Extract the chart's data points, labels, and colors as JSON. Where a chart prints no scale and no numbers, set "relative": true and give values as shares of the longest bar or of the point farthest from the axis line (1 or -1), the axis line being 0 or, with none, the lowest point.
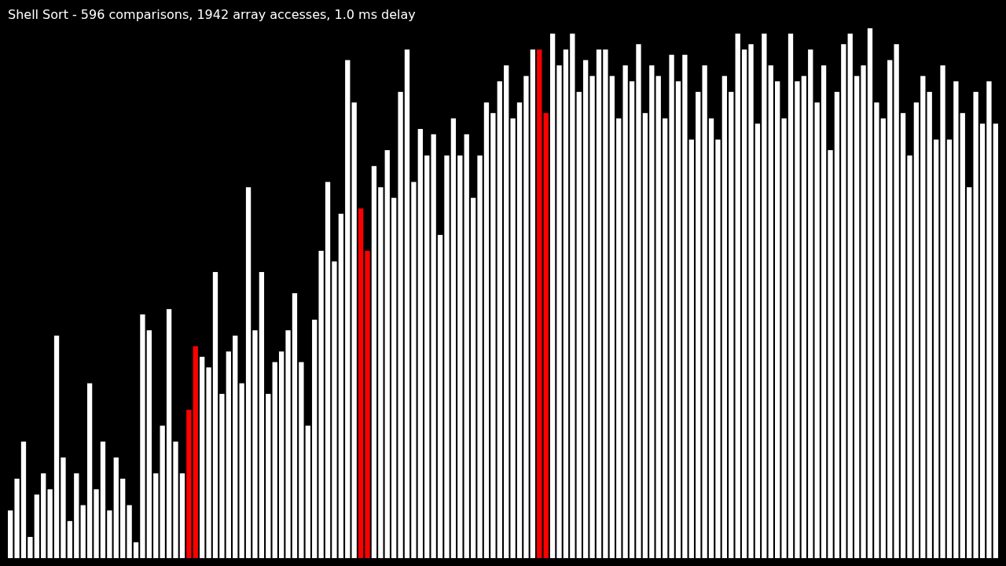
{
  "chart_data": {
    "type": "bar",
    "title": "Shell Sort - 596 comparisons, 1942 array accesses, 1.0 ms delay",
    "relative": true,
    "categories": [
      null,
      null,
      null,
      null,
      null,
      null,
      null,
      null,
      null,
      null,
      null,
      null,
      null,
      null,
      null,
      null,
      null,
      null,
      null,
      null,
      null,
      null,
      null,
      null,
      null,
      null,
      null,
      null,
      null,
      null,
      null,
      null,
      null,
      null,
      null,
      null,
      null,
      null,
      null,
      null,
      null,
      null,
      null,
      null,
      null,
      null,
      null,
      null,
      null,
      null,
      null,
      null,
      null,
      null,
      null,
      null,
      null,
      null,
      null,
      null,
      null,
      null,
      null,
      null,
      null,
      null,
      null,
      null,
      null,
      null,
      null,
      null,
      null,
      null,
      null,
      null,
      null,
      null,
      null,
      null,
      null,
      null,
      null,
      null,
      null,
      null,
      null,
      null,
      null,
      null,
      null,
      null,
      null,
      null,
      null,
      null,
      null,
      null,
      null,
      null,
      null,
      null,
      null,
      null,
      null,
      null,
      null,
      null,
      null,
      null,
      null,
      null,
      null,
      null,
      null,
      null,
      null,
      null,
      null,
      null,
      null,
      null,
      null,
      null,
      null,
      null,
      null,
      null,
      null,
      null,
      null,
      null,
      null,
      null,
      null,
      null,
      null,
      null,
      null,
      null,
      null,
      null,
      null,
      null,
      null,
      null,
      null,
      null,
      null,
      null
    ],
    "values": [
      0.09,
      0.15,
      0.22,
      0.04,
      0.12,
      0.16,
      0.13,
      0.42,
      0.19,
      0.07,
      0.16,
      0.1,
      0.33,
      0.13,
      0.22,
      0.09,
      0.19,
      0.15,
      0.1,
      0.03,
      0.46,
      0.43,
      0.16,
      0.25,
      0.47,
      0.22,
      0.16,
      0.28,
      0.4,
      0.38,
      0.36,
      0.54,
      0.31,
      0.39,
      0.42,
      0.33,
      0.7,
      0.43,
      0.54,
      0.31,
      0.37,
      0.39,
      0.43,
      0.5,
      0.37,
      0.25,
      0.45,
      0.58,
      0.71,
      0.56,
      0.65,
      0.94,
      0.86,
      0.66,
      0.58,
      0.74,
      0.7,
      0.77,
      0.68,
      0.88,
      0.96,
      0.71,
      0.81,
      0.76,
      0.8,
      0.61,
      0.76,
      0.83,
      0.76,
      0.8,
      0.68,
      0.76,
      0.86,
      0.84,
      0.9,
      0.93,
      0.83,
      0.86,
      0.91,
      0.96,
      0.96,
      0.84,
      0.99,
      0.93,
      0.96,
      0.99,
      0.88,
      0.94,
      0.91,
      0.96,
      0.96,
      0.91,
      0.83,
      0.93,
      0.9,
      0.97,
      0.84,
      0.93,
      0.91,
      0.83,
      0.95,
      0.9,
      0.95,
      0.79,
      0.88,
      0.93,
      0.83,
      0.79,
      0.91,
      0.88,
      0.99,
      0.96,
      0.97,
      0.82,
      0.99,
      0.93,
      0.9,
      0.83,
      0.99,
      0.9,
      0.91,
      0.96,
      0.86,
      0.93,
      0.77,
      0.88,
      0.97,
      0.99,
      0.91,
      0.93,
      1,
      0.86,
      0.83,
      0.94,
      0.97,
      0.84,
      0.76,
      0.86,
      0.91,
      0.88,
      0.79,
      0.93,
      0.79,
      0.9,
      0.84,
      0.7,
      0.88,
      0.82,
      0.9,
      0.82
    ],
    "colors": [
      "#ffffff",
      "#ffffff",
      "#ffffff",
      "#ffffff",
      "#ffffff",
      "#ffffff",
      "#ffffff",
      "#ffffff",
      "#ffffff",
      "#ffffff",
      "#ffffff",
      "#ffffff",
      "#ffffff",
      "#ffffff",
      "#ffffff",
      "#ffffff",
      "#ffffff",
      "#ffffff",
      "#ffffff",
      "#ffffff",
      "#ffffff",
      "#ffffff",
      "#ffffff",
      "#ffffff",
      "#ffffff",
      "#ffffff",
      "#ffffff",
      "#ff0000",
      "#ff0000",
      "#ffffff",
      "#ffffff",
      "#ffffff",
      "#ffffff",
      "#ffffff",
      "#ffffff",
      "#ffffff",
      "#ffffff",
      "#ffffff",
      "#ffffff",
      "#ffffff",
      "#ffffff",
      "#ffffff",
      "#ffffff",
      "#ffffff",
      "#ffffff",
      "#ffffff",
      "#ffffff",
      "#ffffff",
      "#ffffff",
      "#ffffff",
      "#ffffff",
      "#ffffff",
      "#ffffff",
      "#ff0000",
      "#ff0000",
      "#ffffff",
      "#ffffff",
      "#ffffff",
      "#ffffff",
      "#ffffff",
      "#ffffff",
      "#ffffff",
      "#ffffff",
      "#ffffff",
      "#ffffff",
      "#ffffff",
      "#ffffff",
      "#ffffff",
      "#ffffff",
      "#ffffff",
      "#ffffff",
      "#ffffff",
      "#ffffff",
      "#ffffff",
      "#ffffff",
      "#ffffff",
      "#ffffff",
      "#ffffff",
      "#ffffff",
      "#ffffff",
      "#ff0000",
      "#ff0000",
      "#ffffff",
      "#ffffff",
      "#ffffff",
      "#ffffff",
      "#ffffff",
      "#ffffff",
      "#ffffff",
      "#ffffff",
      "#ffffff",
      "#ffffff",
      "#ffffff",
      "#ffffff",
      "#ffffff",
      "#ffffff",
      "#ffffff",
      "#ffffff",
      "#ffffff",
      "#ffffff",
      "#ffffff",
      "#ffffff",
      "#ffffff",
      "#ffffff",
      "#ffffff",
      "#ffffff",
      "#ffffff",
      "#ffffff",
      "#ffffff",
      "#ffffff",
      "#ffffff",
      "#ffffff",
      "#ffffff",
      "#ffffff",
      "#ffffff",
      "#ffffff",
      "#ffffff",
      "#ffffff",
      "#ffffff",
      "#ffffff",
      "#ffffff",
      "#ffffff",
      "#ffffff",
      "#ffffff",
      "#ffffff",
      "#ffffff",
      "#ffffff",
      "#ffffff",
      "#ffffff",
      "#ffffff",
      "#ffffff",
      "#ffffff",
      "#ffffff",
      "#ffffff",
      "#ffffff",
      "#ffffff",
      "#ffffff",
      "#ffffff",
      "#ffffff",
      "#ffffff",
      "#ffffff",
      "#ffffff",
      "#ffffff",
      "#ffffff",
      "#ffffff",
      "#ffffff",
      "#ffffff",
      "#ffffff",
      "#ffffff",
      "#ffffff"
    ]
  }
}
